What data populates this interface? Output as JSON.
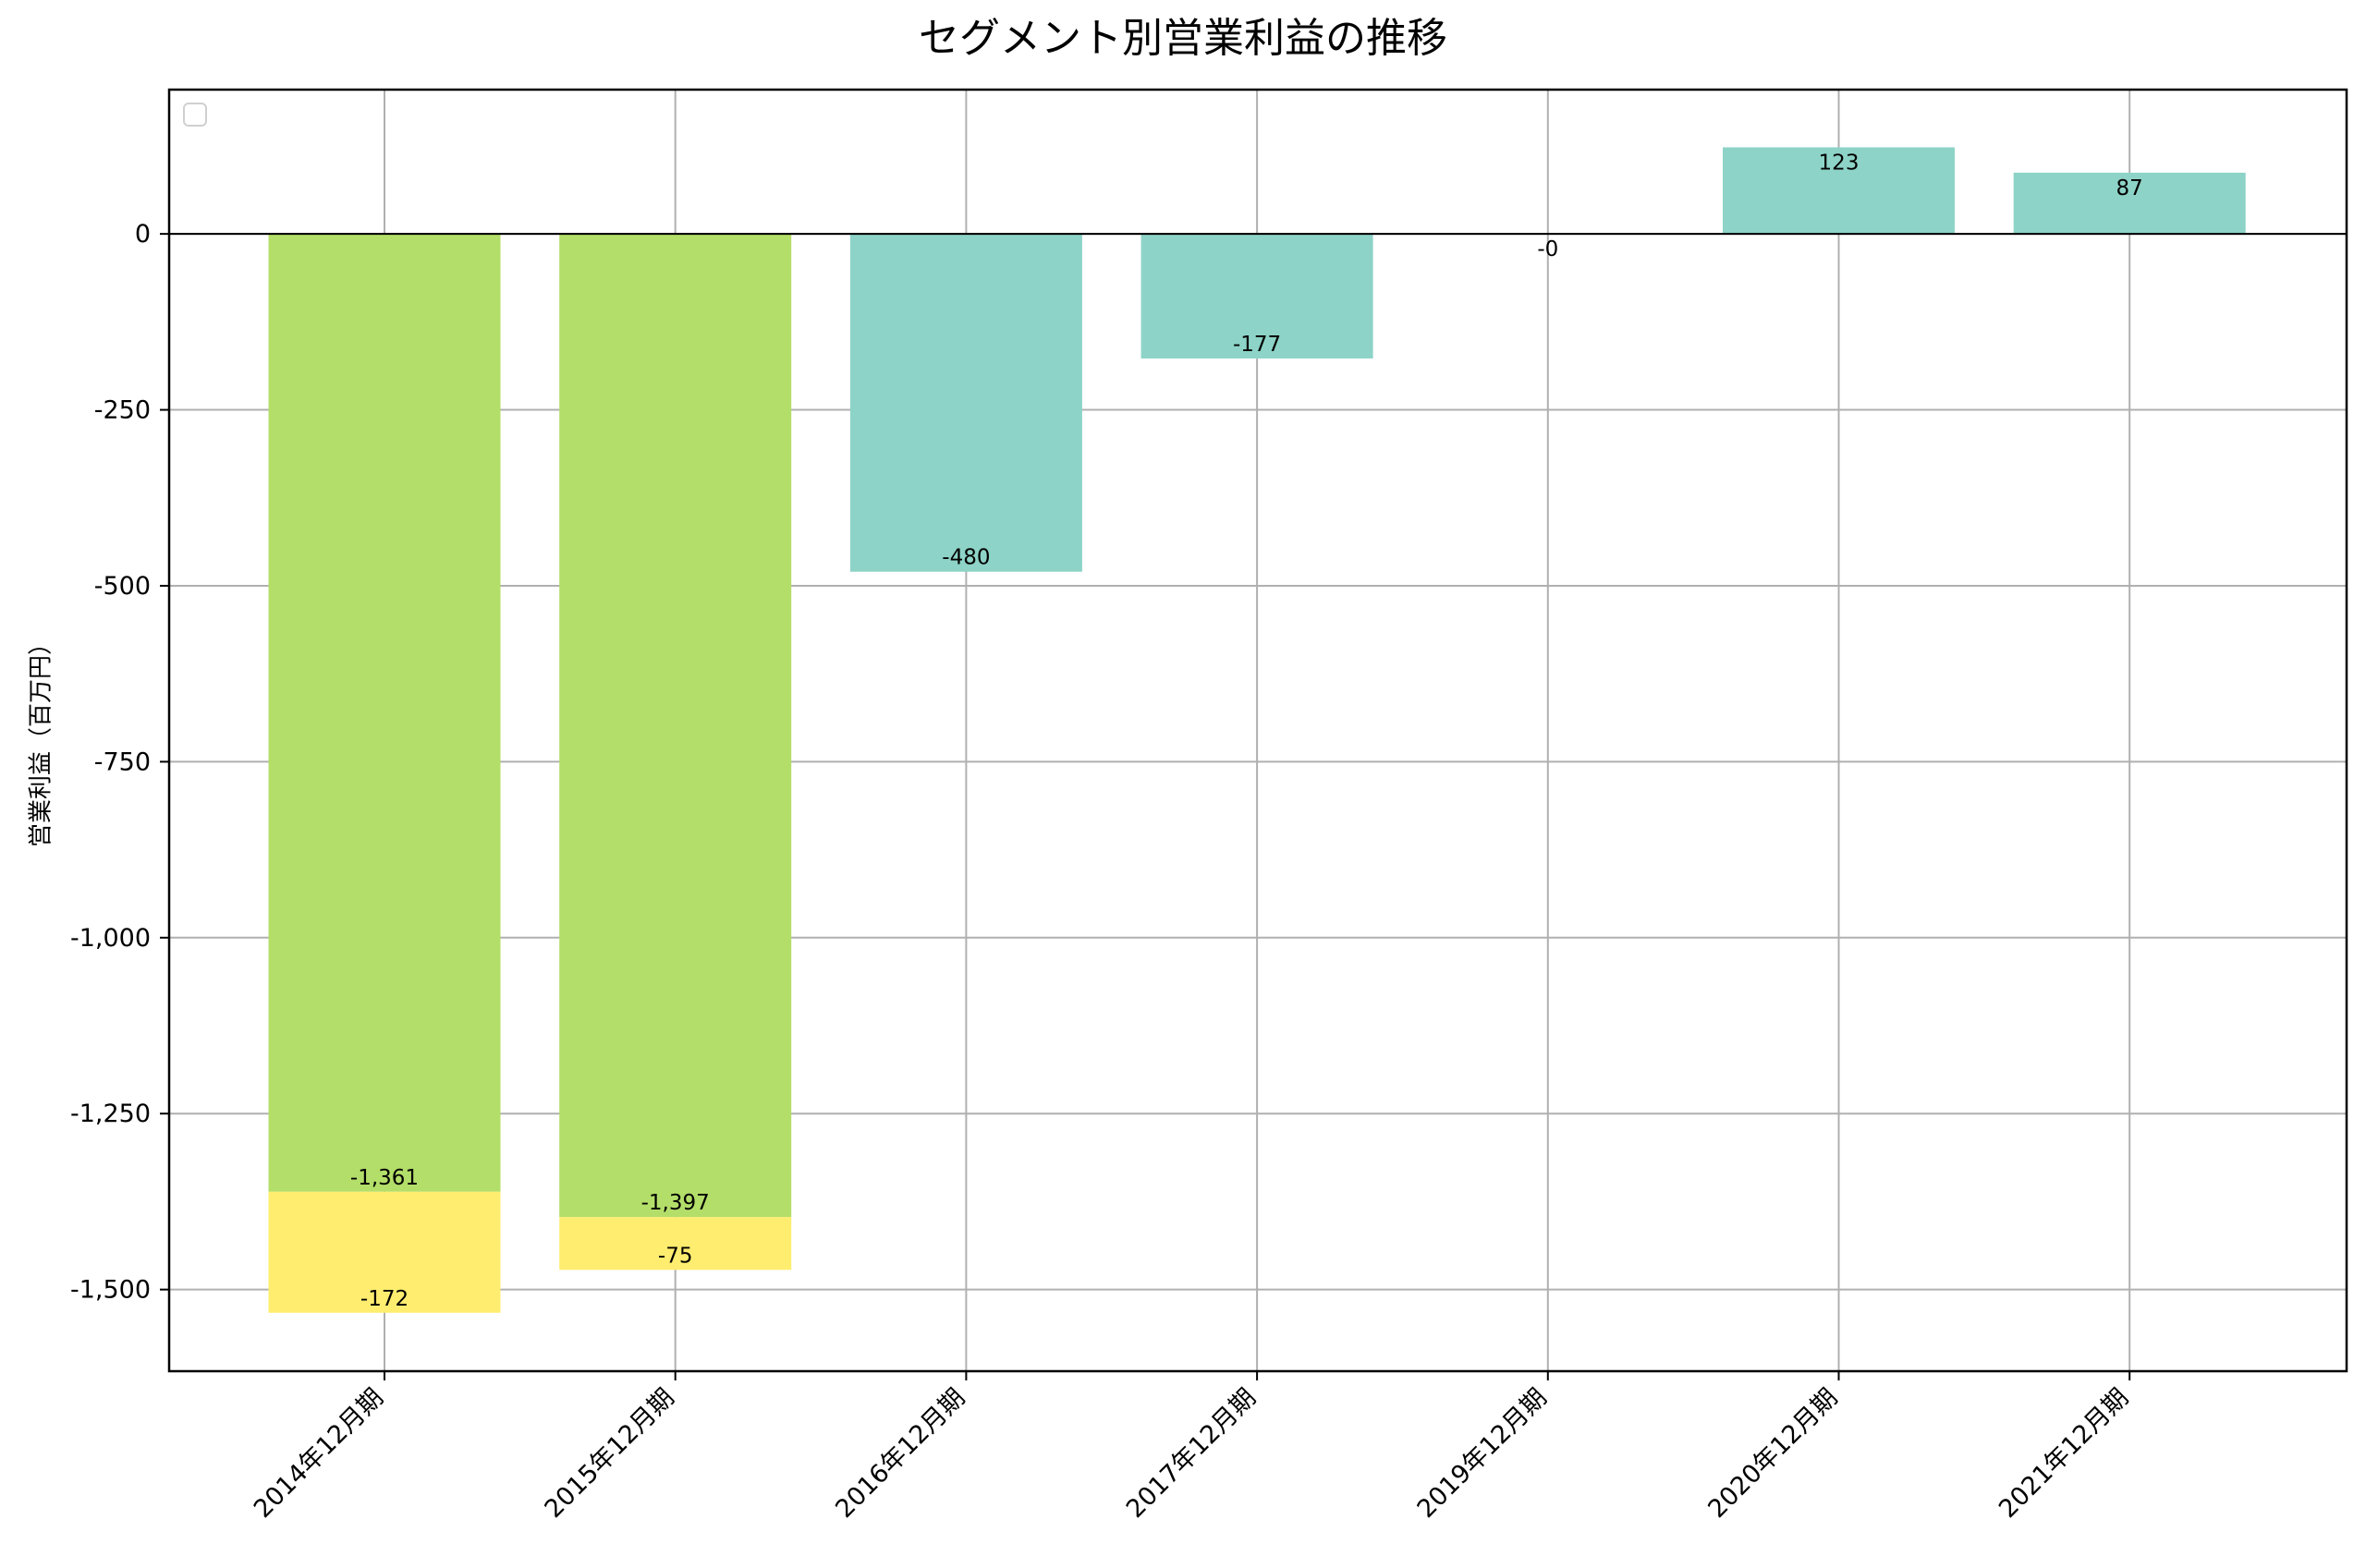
{
  "chart_data": {
    "type": "bar",
    "stacked": true,
    "title": "セグメント別営業利益の推移",
    "xlabel": "",
    "ylabel": "営業利益（百万円）",
    "ylim": [
      -1616,
      205
    ],
    "yticks": [
      0,
      -250,
      -500,
      -750,
      -1000,
      -1250,
      -1500
    ],
    "ytick_labels": [
      "0",
      "-250",
      "-500",
      "-750",
      "-1,000",
      "-1,250",
      "-1,500"
    ],
    "grid": true,
    "legend": {
      "position": "upper left",
      "entries": []
    },
    "categories": [
      "2014年12月期",
      "2015年12月期",
      "2016年12月期",
      "2017年12月期",
      "2019年12月期",
      "2020年12月期",
      "2021年12月期"
    ],
    "series": [
      {
        "name": "segment-green",
        "color": "#b3de69",
        "values": [
          -1361,
          -1397,
          null,
          null,
          null,
          null,
          null
        ],
        "labels": [
          "-1,361",
          "-1,397",
          "",
          "",
          "",
          "",
          ""
        ]
      },
      {
        "name": "segment-yellow",
        "color": "#ffed6f",
        "values": [
          -172,
          -75,
          null,
          null,
          null,
          null,
          null
        ],
        "labels": [
          "-172",
          "-75",
          "",
          "",
          "",
          "",
          ""
        ]
      },
      {
        "name": "segment-teal",
        "color": "#8dd3c7",
        "values": [
          null,
          null,
          -480,
          -177,
          0,
          123,
          87
        ],
        "labels": [
          "",
          "",
          "-480",
          "-177",
          "-0",
          "123",
          "87"
        ]
      }
    ]
  }
}
